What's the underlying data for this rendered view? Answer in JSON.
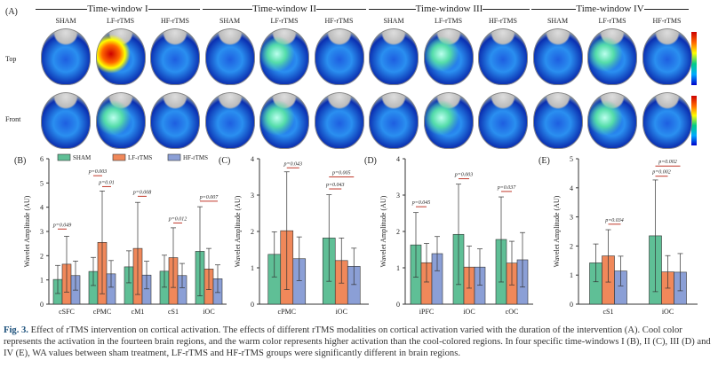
{
  "panel_a": {
    "label": "(A)",
    "time_windows": [
      "Time-window I",
      "Time-window II",
      "Time-window III",
      "Time-window IV"
    ],
    "conditions": [
      "SHAM",
      "LF-rTMS",
      "HF-rTMS"
    ],
    "rows": [
      "Top",
      "Front"
    ],
    "colormap": [
      "#cc0000",
      "#ff6600",
      "#ffee00",
      "#00cc88",
      "#00aaff",
      "#0000cc"
    ]
  },
  "colors": {
    "SHAM": "#5fbf96",
    "LF-rTMS": "#f0885a",
    "HF-rTMS": "#8b9fd6",
    "sig": "#c0392b"
  },
  "legend": [
    "SHAM",
    "LF-rTMS",
    "HF-rTMS"
  ],
  "chart_data": [
    {
      "type": "bar",
      "panel": "(B)",
      "ylabel": "Wavelet Amplitude (AU)",
      "ylim": [
        0,
        6
      ],
      "yticks": [
        0,
        1,
        2,
        3,
        4,
        5,
        6
      ],
      "categories": [
        "cSFC",
        "cPMC",
        "cM1",
        "cS1",
        "iOC"
      ],
      "series": [
        {
          "name": "SHAM",
          "values": [
            1.02,
            1.35,
            1.54,
            1.36,
            2.18
          ],
          "sd": [
            0.58,
            0.58,
            0.66,
            0.66,
            1.84
          ]
        },
        {
          "name": "LF-rTMS",
          "values": [
            1.65,
            2.55,
            2.3,
            1.92,
            1.45
          ],
          "sd": [
            1.15,
            2.12,
            1.9,
            1.23,
            0.85
          ]
        },
        {
          "name": "HF-rTMS",
          "values": [
            1.18,
            1.25,
            1.2,
            1.18,
            1.05
          ],
          "sd": [
            0.6,
            0.55,
            0.57,
            0.5,
            0.57
          ]
        }
      ],
      "pvalues": [
        {
          "cat": 0,
          "pair": [
            0,
            1
          ],
          "text": "p=0.049",
          "y": 3.1
        },
        {
          "cat": 1,
          "pair": [
            0,
            1
          ],
          "text": "p=0.003",
          "y": 5.3
        },
        {
          "cat": 1,
          "pair": [
            1,
            2
          ],
          "text": "p=0.01",
          "y": 4.85
        },
        {
          "cat": 2,
          "pair": [
            1,
            2
          ],
          "text": "p=0.008",
          "y": 4.45
        },
        {
          "cat": 3,
          "pair": [
            1,
            2
          ],
          "text": "p=0.012",
          "y": 3.35
        },
        {
          "cat": 4,
          "pair": [
            0,
            2
          ],
          "text": "p=0.007",
          "y": 4.25
        }
      ]
    },
    {
      "type": "bar",
      "panel": "(C)",
      "ylabel": "Wavelet Amplitude (AU)",
      "ylim": [
        0,
        4
      ],
      "yticks": [
        0,
        1,
        2,
        3,
        4
      ],
      "categories": [
        "cPMC",
        "iOC"
      ],
      "series": [
        {
          "name": "SHAM",
          "values": [
            1.37,
            1.82
          ],
          "sd": [
            0.62,
            1.19
          ]
        },
        {
          "name": "LF-rTMS",
          "values": [
            2.02,
            1.2
          ],
          "sd": [
            1.62,
            0.62
          ]
        },
        {
          "name": "HF-rTMS",
          "values": [
            1.25,
            1.04
          ],
          "sd": [
            0.6,
            0.5
          ]
        }
      ],
      "pvalues": [
        {
          "cat": 0,
          "pair": [
            1,
            2
          ],
          "text": "p=0.043",
          "y": 3.75
        },
        {
          "cat": 1,
          "pair": [
            0,
            2
          ],
          "text": "p=0.005",
          "y": 3.5
        },
        {
          "cat": 1,
          "pair": [
            0,
            1
          ],
          "text": "p=0.043",
          "y": 3.17
        }
      ]
    },
    {
      "type": "bar",
      "panel": "(D)",
      "ylabel": "Wavelet Amplitude (AU)",
      "ylim": [
        0,
        4
      ],
      "yticks": [
        0,
        1,
        2,
        3,
        4
      ],
      "categories": [
        "iPFC",
        "iOC",
        "cOC"
      ],
      "series": [
        {
          "name": "SHAM",
          "values": [
            1.63,
            1.92,
            1.78
          ],
          "sd": [
            0.89,
            1.38,
            1.17
          ]
        },
        {
          "name": "LF-rTMS",
          "values": [
            1.14,
            1.02,
            1.13
          ],
          "sd": [
            0.53,
            0.58,
            0.6
          ]
        },
        {
          "name": "HF-rTMS",
          "values": [
            1.39,
            1.02,
            1.22
          ],
          "sd": [
            0.47,
            0.5,
            0.75
          ]
        }
      ],
      "pvalues": [
        {
          "cat": 0,
          "pair": [
            0,
            1
          ],
          "text": "p=0.045",
          "y": 2.68
        },
        {
          "cat": 1,
          "pair": [
            0,
            1
          ],
          "text": "p=0.003",
          "y": 3.45
        },
        {
          "cat": 2,
          "pair": [
            0,
            1
          ],
          "text": "p=0.037",
          "y": 3.1
        }
      ]
    },
    {
      "type": "bar",
      "panel": "(E)",
      "ylabel": "Wavelet Amplitude (AU)",
      "ylim": [
        0,
        5
      ],
      "yticks": [
        0,
        1,
        2,
        3,
        4,
        5
      ],
      "categories": [
        "cS1",
        "iOC"
      ],
      "series": [
        {
          "name": "SHAM",
          "values": [
            1.42,
            2.35
          ],
          "sd": [
            0.65,
            1.92
          ]
        },
        {
          "name": "LF-rTMS",
          "values": [
            1.66,
            1.11
          ],
          "sd": [
            0.9,
            0.56
          ]
        },
        {
          "name": "HF-rTMS",
          "values": [
            1.14,
            1.1
          ],
          "sd": [
            0.51,
            0.64
          ]
        }
      ],
      "pvalues": [
        {
          "cat": 0,
          "pair": [
            1,
            2
          ],
          "text": "p=0.034",
          "y": 2.75
        },
        {
          "cat": 1,
          "pair": [
            0,
            1
          ],
          "text": "p=0.002",
          "y": 4.4
        },
        {
          "cat": 1,
          "pair": [
            0,
            2
          ],
          "text": "p=0.002",
          "y": 4.75
        }
      ]
    }
  ],
  "caption": {
    "label": "Fig. 3.",
    "text": "Effect of rTMS intervention on cortical activation. The effects of different rTMS modalities on cortical activation varied with the duration of the intervention (A). Cool color represents the activation in the fourteen brain regions, and the warm color represents higher activation than the cool-colored regions. In four specific time-windows I (B), II (C), III (D) and IV (E), WA values between sham treatment, LF-rTMS and HF-rTMS groups were significantly different in brain regions."
  }
}
